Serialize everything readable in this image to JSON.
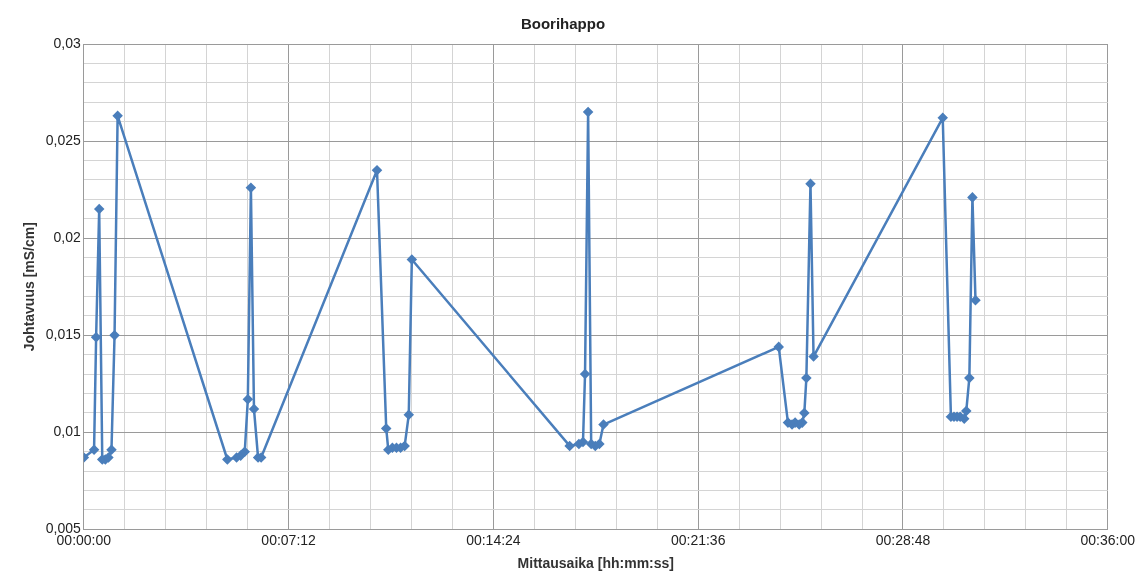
{
  "chart_data": {
    "type": "line",
    "title": "Boorihappo",
    "xlabel": "Mittausaika [hh:mm:ss]",
    "ylabel": "Johtavuus [mS/cm]",
    "x": [
      0,
      0.006,
      0.0072,
      0.009,
      0.0108,
      0.0126,
      0.0144,
      0.0162,
      0.018,
      0.0198,
      0.0841,
      0.0895,
      0.0919,
      0.0943,
      0.0961,
      0.0979,
      0.0997,
      0.1021,
      0.1039,
      0.1718,
      0.1772,
      0.1784,
      0.1808,
      0.1832,
      0.1856,
      0.188,
      0.1904,
      0.1922,
      0.2847,
      0.2901,
      0.2925,
      0.2937,
      0.2955,
      0.2973,
      0.2997,
      0.3021,
      0.3045,
      0.4072,
      0.4126,
      0.415,
      0.4168,
      0.4192,
      0.421,
      0.4222,
      0.4234,
      0.4258,
      0.4276,
      0.5033,
      0.5081,
      0.5099,
      0.5117,
      0.5135,
      0.5159,
      0.5171,
      0.5189,
      0.5207,
      0.5225
    ],
    "series": [
      {
        "color": "#4a7ebb",
        "values": [
          0.0087,
          0.0091,
          0.0149,
          0.0215,
          0.0086,
          0.0086,
          0.0087,
          0.0091,
          0.015,
          0.0263,
          0.0086,
          0.0087,
          0.0088,
          0.009,
          0.0117,
          0.0226,
          0.0112,
          0.0087,
          0.0087,
          0.0235,
          0.0102,
          0.0091,
          0.0092,
          0.0092,
          0.0092,
          0.0093,
          0.0109,
          0.0189,
          0.0093,
          0.0094,
          0.0095,
          0.013,
          0.0265,
          0.0094,
          0.0093,
          0.0094,
          0.0104,
          0.0144,
          0.0105,
          0.0104,
          0.0105,
          0.0104,
          0.0105,
          0.011,
          0.0128,
          0.0228,
          0.0139,
          0.0262,
          0.0108,
          0.0108,
          0.0108,
          0.0108,
          0.0107,
          0.0111,
          0.0128,
          0.0221,
          0.0168
        ]
      }
    ],
    "xlim": [
      0,
      0.6
    ],
    "xticks": [
      {
        "value": 0,
        "label": "00:00:00"
      },
      {
        "value": 0.024,
        "label": null
      },
      {
        "value": 0.048,
        "label": null
      },
      {
        "value": 0.072,
        "label": null
      },
      {
        "value": 0.096,
        "label": null
      },
      {
        "value": 0.12,
        "label": "00:07:12"
      },
      {
        "value": 0.144,
        "label": null
      },
      {
        "value": 0.168,
        "label": null
      },
      {
        "value": 0.192,
        "label": null
      },
      {
        "value": 0.216,
        "label": null
      },
      {
        "value": 0.24,
        "label": "00:14:24"
      },
      {
        "value": 0.264,
        "label": null
      },
      {
        "value": 0.288,
        "label": null
      },
      {
        "value": 0.312,
        "label": null
      },
      {
        "value": 0.336,
        "label": null
      },
      {
        "value": 0.36,
        "label": "00:21:36"
      },
      {
        "value": 0.384,
        "label": null
      },
      {
        "value": 0.408,
        "label": null
      },
      {
        "value": 0.432,
        "label": null
      },
      {
        "value": 0.456,
        "label": null
      },
      {
        "value": 0.48,
        "label": "00:28:48"
      },
      {
        "value": 0.504,
        "label": null
      },
      {
        "value": 0.528,
        "label": null
      },
      {
        "value": 0.552,
        "label": null
      },
      {
        "value": 0.576,
        "label": null
      },
      {
        "value": 0.6,
        "label": "00:36:00"
      }
    ],
    "ylim": [
      0.005,
      0.03
    ],
    "yticks": [
      {
        "value": 0.005,
        "label": "0,005"
      },
      {
        "value": 0.006,
        "label": null
      },
      {
        "value": 0.007,
        "label": null
      },
      {
        "value": 0.008,
        "label": null
      },
      {
        "value": 0.009,
        "label": null
      },
      {
        "value": 0.01,
        "label": "0,01"
      },
      {
        "value": 0.011,
        "label": null
      },
      {
        "value": 0.012,
        "label": null
      },
      {
        "value": 0.013,
        "label": null
      },
      {
        "value": 0.014,
        "label": null
      },
      {
        "value": 0.015,
        "label": "0,015"
      },
      {
        "value": 0.016,
        "label": null
      },
      {
        "value": 0.017,
        "label": null
      },
      {
        "value": 0.018,
        "label": null
      },
      {
        "value": 0.019,
        "label": null
      },
      {
        "value": 0.02,
        "label": "0,02"
      },
      {
        "value": 0.021,
        "label": null
      },
      {
        "value": 0.022,
        "label": null
      },
      {
        "value": 0.023,
        "label": null
      },
      {
        "value": 0.024,
        "label": null
      },
      {
        "value": 0.025,
        "label": "0,025"
      },
      {
        "value": 0.026,
        "label": null
      },
      {
        "value": 0.027,
        "label": null
      },
      {
        "value": 0.028,
        "label": null
      },
      {
        "value": 0.029,
        "label": null
      },
      {
        "value": 0.03,
        "label": "0,03"
      }
    ],
    "grid": true,
    "marker": "diamond",
    "line_style": "solid"
  }
}
